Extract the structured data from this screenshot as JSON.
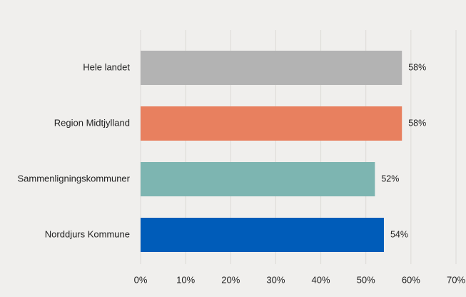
{
  "chart_data": {
    "type": "bar",
    "orientation": "horizontal",
    "title": "",
    "xlabel": "",
    "ylabel": "",
    "categories": [
      "Hele landet",
      "Region Midtjylland",
      "Sammenligningskommuner",
      "Norddjurs Kommune"
    ],
    "values": [
      58,
      58,
      52,
      54
    ],
    "value_labels": [
      "58%",
      "58%",
      "52%",
      "54%"
    ],
    "colors": [
      "#b3b3b3",
      "#e8805f",
      "#7db5b1",
      "#005cb9"
    ],
    "xlim": [
      0,
      70
    ],
    "ticks": [
      0,
      10,
      20,
      30,
      40,
      50,
      60,
      70
    ],
    "tick_labels": [
      "0%",
      "10%",
      "20%",
      "30%",
      "40%",
      "50%",
      "60%",
      "70%"
    ],
    "grid": true,
    "legend": "none"
  }
}
